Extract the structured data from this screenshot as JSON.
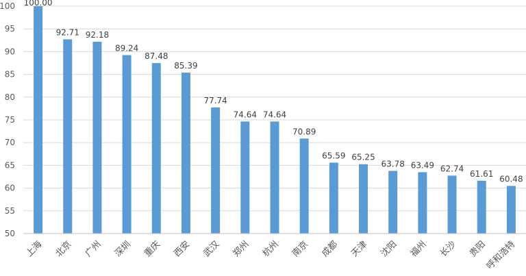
{
  "chart_data": {
    "type": "bar",
    "title": "",
    "xlabel": "",
    "ylabel": "",
    "ylim": [
      50,
      100
    ],
    "yticks": [
      50,
      55,
      60,
      65,
      70,
      75,
      80,
      85,
      90,
      95,
      100
    ],
    "grid": true,
    "legend": "none",
    "bar_color": "#5b9bd5",
    "categories": [
      "上海",
      "北京",
      "广州",
      "深圳",
      "重庆",
      "西安",
      "武汉",
      "郑州",
      "杭州",
      "南京",
      "成都",
      "天津",
      "沈阳",
      "福州",
      "长沙",
      "贵阳",
      "呼和浩特"
    ],
    "values": [
      100.0,
      92.71,
      92.18,
      89.24,
      87.48,
      85.39,
      77.74,
      74.64,
      74.64,
      70.89,
      65.59,
      65.25,
      63.78,
      63.49,
      62.74,
      61.61,
      60.48
    ],
    "value_labels": [
      "100.00",
      "92.71",
      "92.18",
      "89.24",
      "87.48",
      "85.39",
      "77.74",
      "74.64",
      "74.64",
      "70.89",
      "65.59",
      "65.25",
      "63.78",
      "63.49",
      "62.74",
      "61.61",
      "60.48"
    ]
  }
}
